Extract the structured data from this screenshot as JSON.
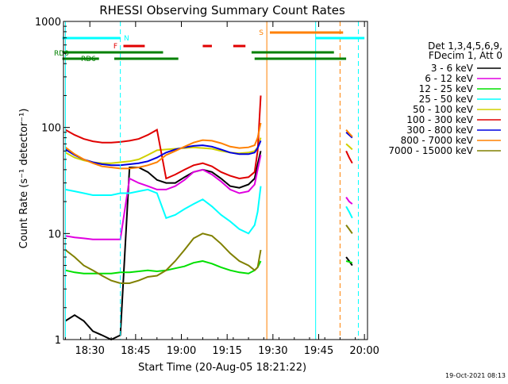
{
  "chart_data": {
    "type": "line",
    "title": "RHESSI Observing Summary Count Rates",
    "xlabel": "Start Time (20-Aug-05 18:21:22)",
    "ylabel": "Count Rate (s⁻¹ detector⁻¹)",
    "x_range": [
      "18:21:22",
      "20:01:00"
    ],
    "y_range": [
      1,
      1000
    ],
    "y_scale": "log",
    "x_ticks": [
      "18:30",
      "18:45",
      "19:00",
      "19:15",
      "19:30",
      "19:45",
      "20:00"
    ],
    "y_ticks": [
      "1",
      "10",
      "100",
      "1000"
    ],
    "grid": false,
    "legend_position": "right",
    "legend_header": [
      "Det 1,3,4,5,6,9,",
      "FDecim 1, Att 0"
    ],
    "timestamp": "19-Oct-2021 08:13",
    "series": [
      {
        "name": "3 - 6 keV",
        "color": "#000000",
        "x": [
          "18:22",
          "18:25",
          "18:28",
          "18:31",
          "18:34",
          "18:37",
          "18:40",
          "18:43",
          "18:46",
          "18:49",
          "18:52",
          "18:55",
          "18:58",
          "19:01",
          "19:04",
          "19:07",
          "19:10",
          "19:13",
          "19:16",
          "19:19",
          "19:22",
          "19:24",
          "19:25",
          "19:26"
        ],
        "y": [
          1.5,
          1.7,
          1.5,
          1.2,
          1.1,
          1.0,
          1.1,
          42,
          42,
          38,
          32,
          30,
          30,
          34,
          38,
          40,
          38,
          33,
          28,
          27,
          29,
          33,
          45,
          60
        ]
      },
      {
        "name": "6 - 12 keV",
        "color": "#e000e0",
        "x": [
          "18:22",
          "18:25",
          "18:28",
          "18:31",
          "18:34",
          "18:37",
          "18:40",
          "18:43",
          "18:46",
          "18:49",
          "18:52",
          "18:55",
          "18:58",
          "19:01",
          "19:04",
          "19:07",
          "19:10",
          "19:13",
          "19:16",
          "19:19",
          "19:22",
          "19:24",
          "19:25",
          "19:26"
        ],
        "y": [
          9.5,
          9.2,
          9.0,
          8.8,
          8.8,
          8.8,
          8.8,
          33,
          30,
          28,
          26,
          26,
          28,
          32,
          38,
          40,
          36,
          31,
          26,
          24,
          25,
          29,
          40,
          55
        ]
      },
      {
        "name": "12 - 25 keV",
        "color": "#00e000",
        "x": [
          "18:22",
          "18:25",
          "18:28",
          "18:31",
          "18:34",
          "18:37",
          "18:40",
          "18:43",
          "18:46",
          "18:49",
          "18:52",
          "18:55",
          "18:58",
          "19:01",
          "19:04",
          "19:07",
          "19:10",
          "19:13",
          "19:16",
          "19:19",
          "19:22",
          "19:24",
          "19:25",
          "19:26"
        ],
        "y": [
          4.5,
          4.3,
          4.2,
          4.2,
          4.2,
          4.2,
          4.3,
          4.3,
          4.4,
          4.5,
          4.4,
          4.5,
          4.7,
          4.9,
          5.3,
          5.5,
          5.2,
          4.8,
          4.5,
          4.3,
          4.2,
          4.5,
          4.8,
          5.5
        ]
      },
      {
        "name": "25 - 50 keV",
        "color": "#00ffff",
        "x": [
          "18:22",
          "18:25",
          "18:28",
          "18:31",
          "18:34",
          "18:37",
          "18:40",
          "18:43",
          "18:46",
          "18:49",
          "18:52",
          "18:55",
          "18:58",
          "19:01",
          "19:04",
          "19:07",
          "19:10",
          "19:13",
          "19:16",
          "19:19",
          "19:22",
          "19:24",
          "19:25",
          "19:26"
        ],
        "y": [
          26,
          25,
          24,
          23,
          23,
          23,
          24,
          24,
          25,
          26,
          24,
          14,
          15,
          17,
          19,
          21,
          18,
          15,
          13,
          11,
          10,
          12,
          16,
          28
        ]
      },
      {
        "name": "50 - 100 keV",
        "color": "#d0d000",
        "x": [
          "18:22",
          "18:25",
          "18:28",
          "18:31",
          "18:34",
          "18:37",
          "18:40",
          "18:43",
          "18:46",
          "18:49",
          "18:52",
          "18:55",
          "18:58",
          "19:01",
          "19:04",
          "19:07",
          "19:10",
          "19:13",
          "19:16",
          "19:19",
          "19:22",
          "19:24",
          "19:25",
          "19:26"
        ],
        "y": [
          58,
          52,
          49,
          47,
          46,
          46,
          47,
          48,
          50,
          55,
          61,
          62,
          63,
          64,
          65,
          64,
          63,
          60,
          58,
          57,
          58,
          60,
          65,
          80
        ]
      },
      {
        "name": "100 - 300 keV",
        "color": "#e00000",
        "x": [
          "18:22",
          "18:25",
          "18:28",
          "18:31",
          "18:34",
          "18:37",
          "18:40",
          "18:43",
          "18:46",
          "18:49",
          "18:52",
          "18:55",
          "18:58",
          "19:01",
          "19:04",
          "19:07",
          "19:10",
          "19:13",
          "19:16",
          "19:19",
          "19:22",
          "19:24",
          "19:25",
          "19:26"
        ],
        "y": [
          95,
          85,
          78,
          74,
          72,
          72,
          73,
          75,
          78,
          85,
          95,
          33,
          36,
          40,
          44,
          46,
          43,
          38,
          35,
          33,
          34,
          38,
          60,
          200
        ]
      },
      {
        "name": "300 - 800 keV",
        "color": "#0000e0",
        "x": [
          "18:22",
          "18:25",
          "18:28",
          "18:31",
          "18:34",
          "18:37",
          "18:40",
          "18:43",
          "18:46",
          "18:49",
          "18:52",
          "18:55",
          "18:58",
          "19:01",
          "19:04",
          "19:07",
          "19:10",
          "19:13",
          "19:16",
          "19:19",
          "19:22",
          "19:24",
          "19:25",
          "19:26"
        ],
        "y": [
          62,
          55,
          50,
          47,
          45,
          44,
          44,
          45,
          46,
          48,
          52,
          58,
          62,
          65,
          67,
          68,
          66,
          62,
          58,
          56,
          56,
          58,
          64,
          75
        ]
      },
      {
        "name": "800 - 7000 keV",
        "color": "#ff8000",
        "x": [
          "18:22",
          "18:25",
          "18:28",
          "18:31",
          "18:34",
          "18:37",
          "18:40",
          "18:43",
          "18:46",
          "18:49",
          "18:52",
          "18:55",
          "18:58",
          "19:01",
          "19:04",
          "19:07",
          "19:10",
          "19:13",
          "19:16",
          "19:19",
          "19:22",
          "19:24",
          "19:25",
          "19:26"
        ],
        "y": [
          65,
          56,
          50,
          46,
          43,
          42,
          41,
          41,
          42,
          44,
          47,
          55,
          60,
          66,
          72,
          76,
          75,
          71,
          66,
          64,
          65,
          68,
          80,
          110
        ]
      },
      {
        "name": "7000 - 15000 keV",
        "color": "#808000",
        "x": [
          "18:22",
          "18:25",
          "18:28",
          "18:31",
          "18:34",
          "18:37",
          "18:40",
          "18:43",
          "18:46",
          "18:49",
          "18:52",
          "18:55",
          "18:58",
          "19:01",
          "19:04",
          "19:07",
          "19:10",
          "19:13",
          "19:16",
          "19:19",
          "19:22",
          "19:24",
          "19:25",
          "19:26"
        ],
        "y": [
          7,
          6,
          5,
          4.5,
          4,
          3.6,
          3.4,
          3.4,
          3.6,
          3.9,
          4,
          4.5,
          5.5,
          7,
          9,
          10,
          9.5,
          8,
          6.5,
          5.5,
          5,
          4.5,
          4.8,
          7
        ]
      }
    ],
    "tail_series": [
      {
        "color": "#000000",
        "x": [
          "19:54",
          "19:55",
          "19:56"
        ],
        "y": [
          6,
          5.5,
          5
        ]
      },
      {
        "color": "#e000e0",
        "x": [
          "19:54",
          "19:55",
          "19:56"
        ],
        "y": [
          22,
          20,
          19
        ]
      },
      {
        "color": "#00e000",
        "x": [
          "19:54",
          "19:55",
          "19:56"
        ],
        "y": [
          5.5,
          5.4,
          5.3
        ]
      },
      {
        "color": "#00ffff",
        "x": [
          "19:54",
          "19:55",
          "19:56"
        ],
        "y": [
          18,
          16,
          14
        ]
      },
      {
        "color": "#d0d000",
        "x": [
          "19:54",
          "19:55",
          "19:56"
        ],
        "y": [
          70,
          66,
          62
        ]
      },
      {
        "color": "#e00000",
        "x": [
          "19:54",
          "19:55",
          "19:56"
        ],
        "y": [
          60,
          52,
          46
        ]
      },
      {
        "color": "#0000e0",
        "x": [
          "19:54",
          "19:55",
          "19:56"
        ],
        "y": [
          90,
          85,
          80
        ]
      },
      {
        "color": "#ff8000",
        "x": [
          "19:54",
          "19:55",
          "19:56"
        ],
        "y": [
          95,
          88,
          82
        ]
      },
      {
        "color": "#808000",
        "x": [
          "19:54",
          "19:55",
          "19:56"
        ],
        "y": [
          12,
          11,
          10
        ]
      }
    ],
    "flag_bars": [
      {
        "label": "N",
        "color": "#00ffff",
        "segments": [
          [
            "18:21",
            "18:40"
          ],
          [
            "19:44",
            "20:00"
          ]
        ]
      },
      {
        "label": "F",
        "color": "#e00000",
        "segments": [
          [
            "18:41",
            "18:48"
          ],
          [
            "19:07",
            "19:10"
          ],
          [
            "19:17",
            "19:21"
          ]
        ]
      },
      {
        "label": "S",
        "color": "#ff8000",
        "segments": [
          [
            "19:29",
            "19:53"
          ]
        ]
      },
      {
        "label": "RD0",
        "color": "#008000",
        "segments": [
          [
            "18:21",
            "18:54"
          ],
          [
            "19:23",
            "19:50"
          ]
        ]
      },
      {
        "label": "RD6",
        "color": "#008000",
        "segments": [
          [
            "18:21",
            "18:33"
          ],
          [
            "18:38",
            "18:59"
          ],
          [
            "19:24",
            "19:54"
          ]
        ]
      }
    ],
    "vlines": [
      {
        "time": "18:22",
        "color": "#00ffff",
        "dash": false
      },
      {
        "time": "18:40",
        "color": "#00ffff",
        "dash": true
      },
      {
        "time": "19:28",
        "color": "#ff8000",
        "dash": false
      },
      {
        "time": "19:44",
        "color": "#00ffff",
        "dash": false
      },
      {
        "time": "19:52",
        "color": "#ff8000",
        "dash": true
      },
      {
        "time": "19:58",
        "color": "#00ffff",
        "dash": true
      }
    ]
  }
}
